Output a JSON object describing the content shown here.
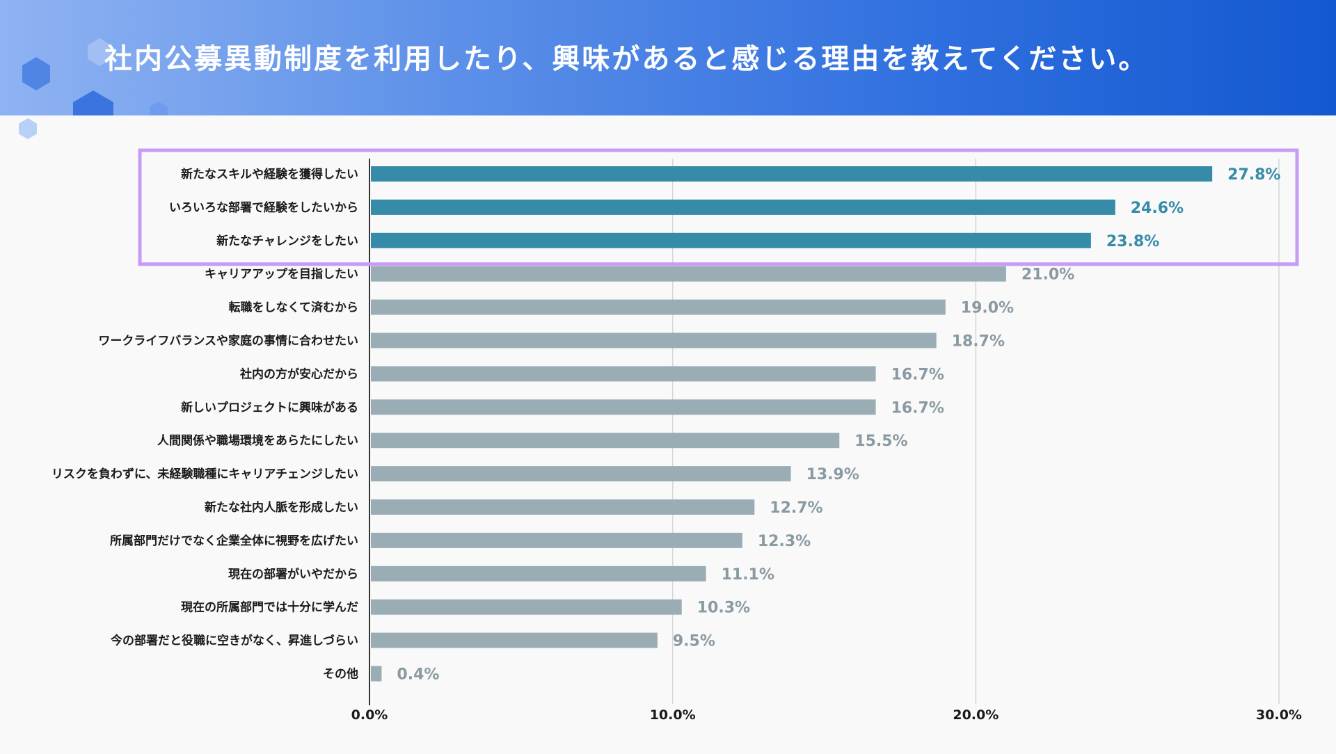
{
  "header": {
    "title": "社内公募異動制度を利用したり、興味があると感じる理由を教えてください。"
  },
  "colors": {
    "highlight_bar": "#368ba8",
    "normal_bar": "#9aadb5",
    "highlight_label": "#368ba8",
    "normal_label": "#8a9aa2",
    "highlight_frame": "#c79cf5",
    "grid": "#d6d6d6",
    "axis": "#333333"
  },
  "chart_data": {
    "type": "bar",
    "orientation": "horizontal",
    "title": "社内公募異動制度を利用したり、興味があると感じる理由を教えてください。",
    "categories": [
      "新たなスキルや経験を獲得したい",
      "いろいろな部署で経験をしたいから",
      "新たなチャレンジをしたい",
      "キャリアアップを目指したい",
      "転職をしなくて済むから",
      "ワークライフバランスや家庭の事情に合わせたい",
      "社内の方が安心だから",
      "新しいプロジェクトに興味がある",
      "人間関係や職場環境をあらたにしたい",
      "リスクを負わずに、未経験職種にキャリアチェンジしたい",
      "新たな社内人脈を形成したい",
      "所属部門だけでなく企業全体に視野を広げたい",
      "現在の部署がいやだから",
      "現在の所属部門では十分に学んだ",
      "今の部署だと役職に空きがなく、昇進しづらい",
      "その他"
    ],
    "values": [
      27.8,
      24.6,
      23.8,
      21.0,
      19.0,
      18.7,
      16.7,
      16.7,
      15.5,
      13.9,
      12.7,
      12.3,
      11.1,
      10.3,
      9.5,
      0.4
    ],
    "value_labels": [
      "27.8%",
      "24.6%",
      "23.8%",
      "21.0%",
      "19.0%",
      "18.7%",
      "16.7%",
      "16.7%",
      "15.5%",
      "13.9%",
      "12.7%",
      "12.3%",
      "11.1%",
      "10.3%",
      "9.5%",
      "0.4%"
    ],
    "highlighted_count": 3,
    "xlim": [
      0,
      30
    ],
    "xticks": [
      0,
      10,
      20,
      30
    ],
    "xtick_labels": [
      "0.0%",
      "10.0%",
      "20.0%",
      "30.0%"
    ],
    "grid": true,
    "xlabel": "",
    "ylabel": ""
  }
}
